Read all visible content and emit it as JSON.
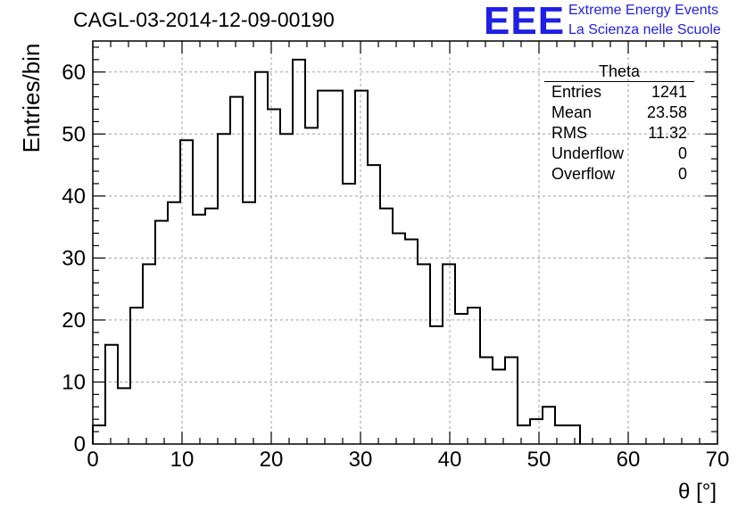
{
  "header": {
    "run_title": "CAGL-03-2014-12-09-00190",
    "logo_text": "EEE",
    "logo_line1": "Extreme Energy Events",
    "logo_line2": "La Scienza nelle Scuole",
    "logo_color": "#1f1fe6"
  },
  "stats": {
    "title": "Theta",
    "rows": [
      {
        "label": "Entries",
        "value": "1241"
      },
      {
        "label": "Mean",
        "value": "23.58"
      },
      {
        "label": "RMS",
        "value": "11.32"
      },
      {
        "label": "Underflow",
        "value": "0"
      },
      {
        "label": "Overflow",
        "value": "0"
      }
    ]
  },
  "chart_data": {
    "type": "bar",
    "style": "step-histogram",
    "xlabel": "θ [°]",
    "ylabel": "Entries/bin",
    "xlim": [
      0,
      70
    ],
    "ylim": [
      0,
      65
    ],
    "bin_width": 1.4,
    "bin_starts": [
      0,
      1.4,
      2.8,
      4.2,
      5.6,
      7.0,
      8.4,
      9.8,
      11.2,
      12.6,
      14.0,
      15.4,
      16.8,
      18.2,
      19.6,
      21.0,
      22.4,
      23.8,
      25.2,
      26.6,
      28.0,
      29.4,
      30.8,
      32.2,
      33.6,
      35.0,
      36.4,
      37.8,
      39.2,
      40.6,
      42.0,
      43.4,
      44.8,
      46.2,
      47.6,
      49.0,
      50.4,
      51.8,
      53.2
    ],
    "values": [
      3,
      16,
      9,
      22,
      29,
      36,
      39,
      49,
      37,
      38,
      50,
      56,
      39,
      60,
      54,
      50,
      62,
      51,
      57,
      57,
      42,
      57,
      45,
      38,
      34,
      33,
      29,
      19,
      29,
      21,
      22,
      14,
      12,
      14,
      3,
      4,
      6,
      3,
      3
    ],
    "x_ticks": [
      0,
      10,
      20,
      30,
      40,
      50,
      60,
      70
    ],
    "y_ticks": [
      0,
      10,
      20,
      30,
      40,
      50,
      60
    ],
    "grid": true,
    "line_color": "#000000",
    "grid_color": "#a0a0a0"
  }
}
